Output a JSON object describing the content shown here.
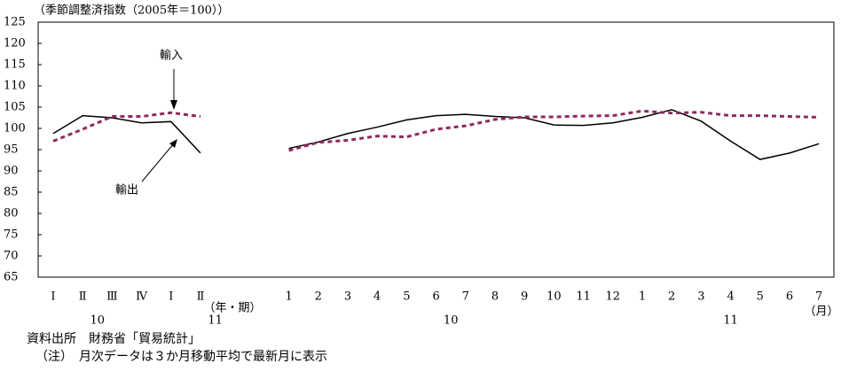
{
  "chart_data": {
    "type": "line",
    "y_unit_label": "（季節調整済指数（2005年＝100））",
    "categories": [
      "Ⅰ",
      "Ⅱ",
      "Ⅲ",
      "Ⅳ",
      "Ⅰ",
      "Ⅱ",
      null,
      null,
      "1",
      "2",
      "3",
      "4",
      "5",
      "6",
      "7",
      "8",
      "9",
      "10",
      "11",
      "12",
      "1",
      "2",
      "3",
      "4",
      "5",
      "6",
      "7"
    ],
    "year_labels": [
      "10",
      "11",
      "10",
      "11"
    ],
    "x_unit_labels": [
      "（年・期）",
      "（月）"
    ],
    "series": [
      {
        "name": "輸出",
        "color": "#000000",
        "dashed": false,
        "values": [
          98.8,
          103,
          102.5,
          101.3,
          101.6,
          94.2,
          null,
          null,
          95.3,
          96.8,
          98.8,
          100.3,
          102,
          103,
          103.3,
          102.8,
          102.5,
          100.8,
          100.7,
          101.3,
          102.6,
          104.4,
          101.7,
          97,
          92.7,
          94.2,
          96.4
        ]
      },
      {
        "name": "輸入",
        "color": "#8e2a5c",
        "dashed": true,
        "values": [
          97,
          99.8,
          102.8,
          102.8,
          103.7,
          102.8,
          null,
          null,
          94.8,
          96.7,
          97.2,
          98.2,
          98,
          99.8,
          100.6,
          102.1,
          102.7,
          102.7,
          102.9,
          103,
          104.1,
          103.6,
          103.8,
          103,
          103,
          102.8,
          102.6
        ]
      }
    ],
    "ylim": [
      65,
      125
    ],
    "yticks": [
      65,
      70,
      75,
      80,
      85,
      90,
      95,
      100,
      105,
      110,
      115,
      120,
      125
    ],
    "grid": false
  },
  "footer": {
    "source": "資料出所　財務省「貿易統計」",
    "note": "（注）　月次データは３か月移動平均で最新月に表示"
  }
}
